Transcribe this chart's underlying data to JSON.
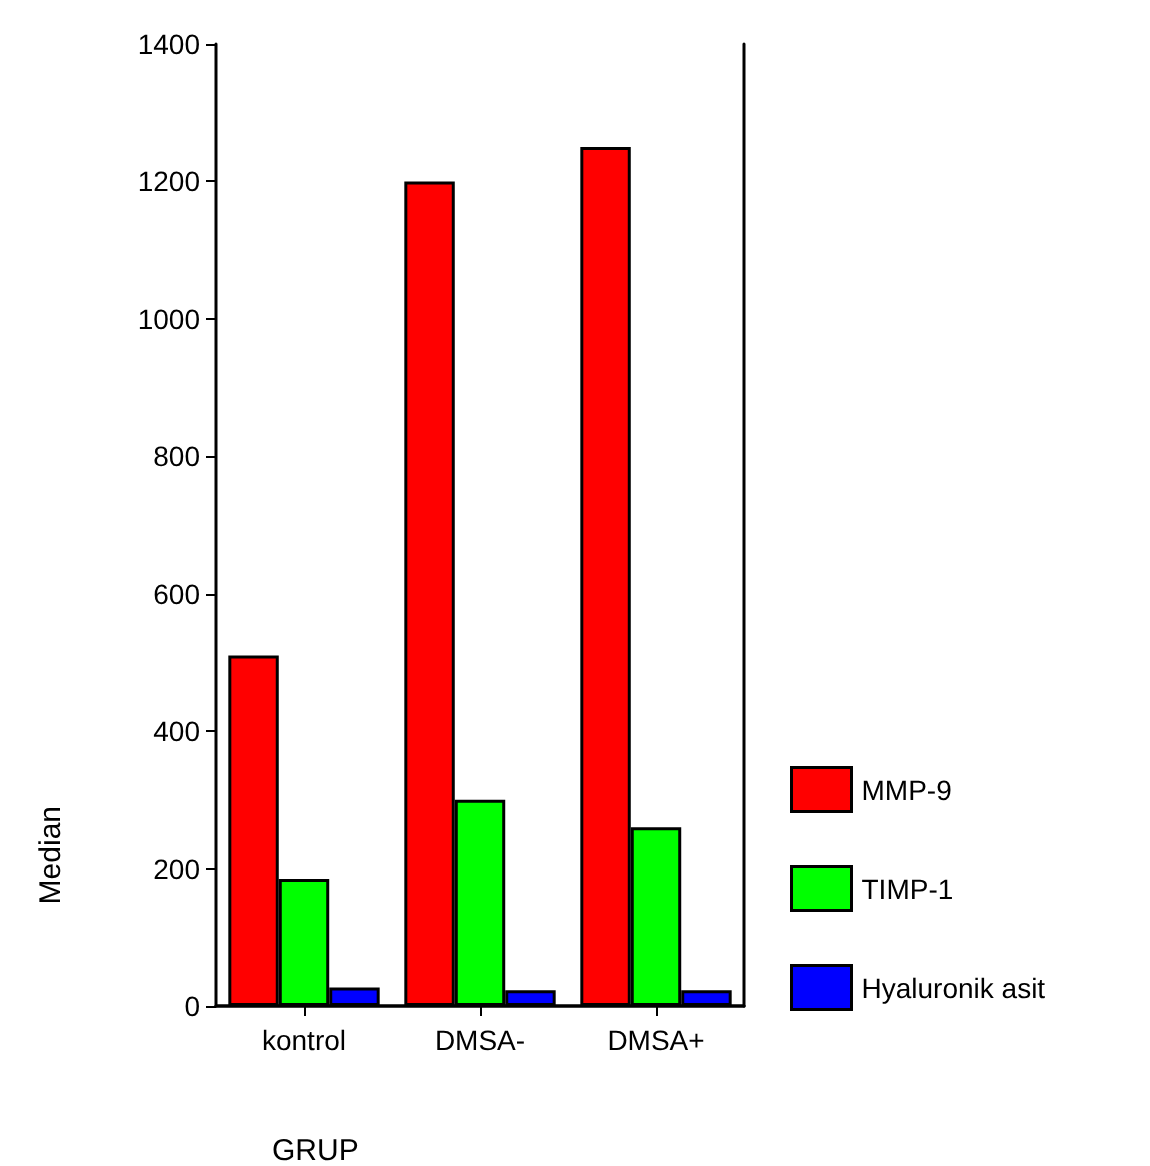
{
  "chart_data": {
    "type": "bar",
    "xlabel": "GRUP",
    "ylabel": "Median",
    "categories": [
      "kontrol",
      "DMSA-",
      "DMSA+"
    ],
    "series": [
      {
        "name": "MMP-9",
        "color": "#ff0000",
        "values": [
          510,
          1200,
          1250
        ]
      },
      {
        "name": "TIMP-1",
        "color": "#00ff00",
        "values": [
          185,
          300,
          260
        ]
      },
      {
        "name": "Hyaluronik asit",
        "color": "#0000ff",
        "values": [
          27,
          23,
          23
        ]
      }
    ],
    "ylim": [
      0,
      1400
    ],
    "yticks": [
      0,
      200,
      400,
      600,
      800,
      1000,
      1200,
      1400
    ],
    "grid": false,
    "legend": "right"
  }
}
